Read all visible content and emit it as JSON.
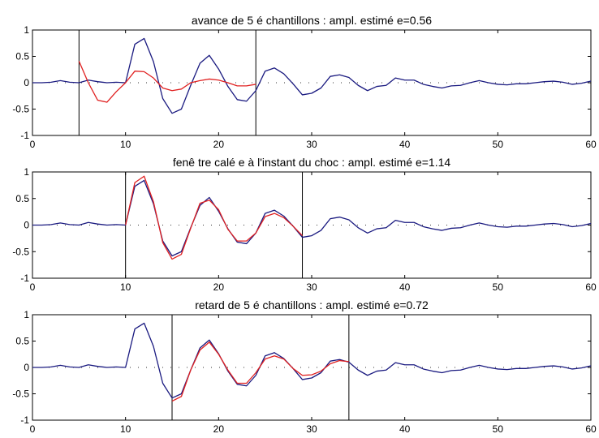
{
  "chart_data": [
    {
      "type": "line",
      "title": "avance de 5 é chantillons : ampl. estimé e=0.56",
      "xlim": [
        0,
        60
      ],
      "ylim": [
        -1,
        1
      ],
      "xticks": [
        0,
        10,
        20,
        30,
        40,
        50,
        60
      ],
      "yticks": [
        -1,
        -0.5,
        0,
        0.5,
        1
      ],
      "ytick_labels": [
        "-1",
        "-0.5",
        "0",
        "0.5",
        "1"
      ],
      "grid": false,
      "window_lines": [
        5,
        24
      ],
      "series": [
        {
          "color": "#1a1a80",
          "x": [
            0,
            1,
            2,
            3,
            4,
            5,
            6,
            7,
            8,
            9,
            10,
            11,
            12,
            13,
            14,
            15,
            16,
            17,
            18,
            19,
            20,
            21,
            22,
            23,
            24,
            25,
            26,
            27,
            28,
            29,
            30,
            31,
            32,
            33,
            34,
            35,
            36,
            37,
            38,
            39,
            40,
            41,
            42,
            43,
            44,
            45,
            46,
            47,
            48,
            49,
            50,
            51,
            52,
            53,
            54,
            55,
            56,
            57,
            58,
            59,
            60
          ],
          "values": [
            0,
            0,
            0.01,
            0.04,
            0.01,
            0,
            0.05,
            0.02,
            0,
            0.01,
            0,
            0.73,
            0.84,
            0.4,
            -0.3,
            -0.58,
            -0.5,
            -0.05,
            0.37,
            0.52,
            0.26,
            -0.07,
            -0.32,
            -0.35,
            -0.15,
            0.22,
            0.28,
            0.17,
            -0.02,
            -0.23,
            -0.2,
            -0.1,
            0.12,
            0.15,
            0.1,
            -0.05,
            -0.15,
            -0.07,
            -0.05,
            0.09,
            0.05,
            0.05,
            -0.03,
            -0.07,
            -0.1,
            -0.06,
            -0.05,
            0,
            0.04,
            0,
            -0.03,
            -0.04,
            -0.02,
            -0.02,
            0,
            0.02,
            0.03,
            0.01,
            -0.03,
            -0.01,
            0.03
          ]
        },
        {
          "color": "#e02020",
          "x": [
            5,
            6,
            7,
            8,
            9,
            10,
            11,
            12,
            13,
            14,
            15,
            16,
            17,
            18,
            19,
            20,
            21,
            22,
            23,
            24
          ],
          "values": [
            0.41,
            0,
            -0.33,
            -0.37,
            -0.17,
            0,
            0.22,
            0.21,
            0.09,
            -0.1,
            -0.15,
            -0.12,
            0,
            0.04,
            0.07,
            0.05,
            0,
            -0.06,
            -0.06,
            -0.03
          ]
        }
      ]
    },
    {
      "type": "line",
      "title": "fenê tre calé e à l'instant du choc : ampl. estimé e=1.14",
      "xlim": [
        0,
        60
      ],
      "ylim": [
        -1,
        1
      ],
      "xticks": [
        0,
        10,
        20,
        30,
        40,
        50,
        60
      ],
      "yticks": [
        -1,
        -0.5,
        0,
        0.5,
        1
      ],
      "ytick_labels": [
        "-1",
        "-0.5",
        "0",
        "0.5",
        "1"
      ],
      "grid": false,
      "window_lines": [
        10,
        29
      ],
      "series": [
        {
          "color": "#1a1a80",
          "x": [
            0,
            1,
            2,
            3,
            4,
            5,
            6,
            7,
            8,
            9,
            10,
            11,
            12,
            13,
            14,
            15,
            16,
            17,
            18,
            19,
            20,
            21,
            22,
            23,
            24,
            25,
            26,
            27,
            28,
            29,
            30,
            31,
            32,
            33,
            34,
            35,
            36,
            37,
            38,
            39,
            40,
            41,
            42,
            43,
            44,
            45,
            46,
            47,
            48,
            49,
            50,
            51,
            52,
            53,
            54,
            55,
            56,
            57,
            58,
            59,
            60
          ],
          "values": [
            0,
            0,
            0.01,
            0.04,
            0.01,
            0,
            0.05,
            0.02,
            0,
            0.01,
            0,
            0.73,
            0.84,
            0.4,
            -0.3,
            -0.58,
            -0.5,
            -0.05,
            0.37,
            0.52,
            0.26,
            -0.07,
            -0.32,
            -0.35,
            -0.15,
            0.22,
            0.28,
            0.17,
            -0.02,
            -0.23,
            -0.2,
            -0.1,
            0.12,
            0.15,
            0.1,
            -0.05,
            -0.15,
            -0.07,
            -0.05,
            0.09,
            0.05,
            0.05,
            -0.03,
            -0.07,
            -0.1,
            -0.06,
            -0.05,
            0,
            0.04,
            0,
            -0.03,
            -0.04,
            -0.02,
            -0.02,
            0,
            0.02,
            0.03,
            0.01,
            -0.03,
            -0.01,
            0.03
          ]
        },
        {
          "color": "#e02020",
          "x": [
            10,
            11,
            12,
            13,
            14,
            15,
            16,
            17,
            18,
            19,
            20,
            21,
            22,
            23,
            24,
            25,
            26,
            27,
            28,
            29
          ],
          "values": [
            0,
            0.8,
            0.92,
            0.44,
            -0.33,
            -0.64,
            -0.55,
            -0.06,
            0.41,
            0.47,
            0.29,
            -0.08,
            -0.3,
            -0.3,
            -0.15,
            0.16,
            0.22,
            0.14,
            -0.02,
            -0.2
          ]
        }
      ]
    },
    {
      "type": "line",
      "title": "retard de 5 é chantillons : ampl. estimé e=0.72",
      "xlim": [
        0,
        60
      ],
      "ylim": [
        -1,
        1
      ],
      "xticks": [
        0,
        10,
        20,
        30,
        40,
        50,
        60
      ],
      "yticks": [
        -1,
        -0.5,
        0,
        0.5,
        1
      ],
      "ytick_labels": [
        "-1",
        "-0.5",
        "0",
        "0.5",
        "1"
      ],
      "grid": false,
      "window_lines": [
        15,
        34
      ],
      "series": [
        {
          "color": "#1a1a80",
          "x": [
            0,
            1,
            2,
            3,
            4,
            5,
            6,
            7,
            8,
            9,
            10,
            11,
            12,
            13,
            14,
            15,
            16,
            17,
            18,
            19,
            20,
            21,
            22,
            23,
            24,
            25,
            26,
            27,
            28,
            29,
            30,
            31,
            32,
            33,
            34,
            35,
            36,
            37,
            38,
            39,
            40,
            41,
            42,
            43,
            44,
            45,
            46,
            47,
            48,
            49,
            50,
            51,
            52,
            53,
            54,
            55,
            56,
            57,
            58,
            59,
            60
          ],
          "values": [
            0,
            0,
            0.01,
            0.04,
            0.01,
            0,
            0.05,
            0.02,
            0,
            0.01,
            0,
            0.73,
            0.84,
            0.4,
            -0.3,
            -0.58,
            -0.5,
            -0.05,
            0.37,
            0.52,
            0.26,
            -0.07,
            -0.32,
            -0.35,
            -0.15,
            0.22,
            0.28,
            0.17,
            -0.02,
            -0.23,
            -0.2,
            -0.1,
            0.12,
            0.15,
            0.1,
            -0.05,
            -0.15,
            -0.07,
            -0.05,
            0.09,
            0.05,
            0.05,
            -0.03,
            -0.07,
            -0.1,
            -0.06,
            -0.05,
            0,
            0.04,
            0,
            -0.03,
            -0.04,
            -0.02,
            -0.02,
            0,
            0.02,
            0.03,
            0.01,
            -0.03,
            -0.01,
            0.03
          ]
        },
        {
          "color": "#e02020",
          "x": [
            15,
            16,
            17,
            18,
            19,
            20,
            21,
            22,
            23,
            24,
            25,
            26,
            27,
            28,
            29,
            30,
            31,
            32,
            33,
            34
          ],
          "values": [
            -0.64,
            -0.55,
            -0.05,
            0.33,
            0.48,
            0.25,
            -0.05,
            -0.3,
            -0.3,
            -0.1,
            0.16,
            0.22,
            0.16,
            -0.02,
            -0.15,
            -0.14,
            -0.07,
            0.07,
            0.13,
            0.11
          ]
        }
      ]
    }
  ]
}
